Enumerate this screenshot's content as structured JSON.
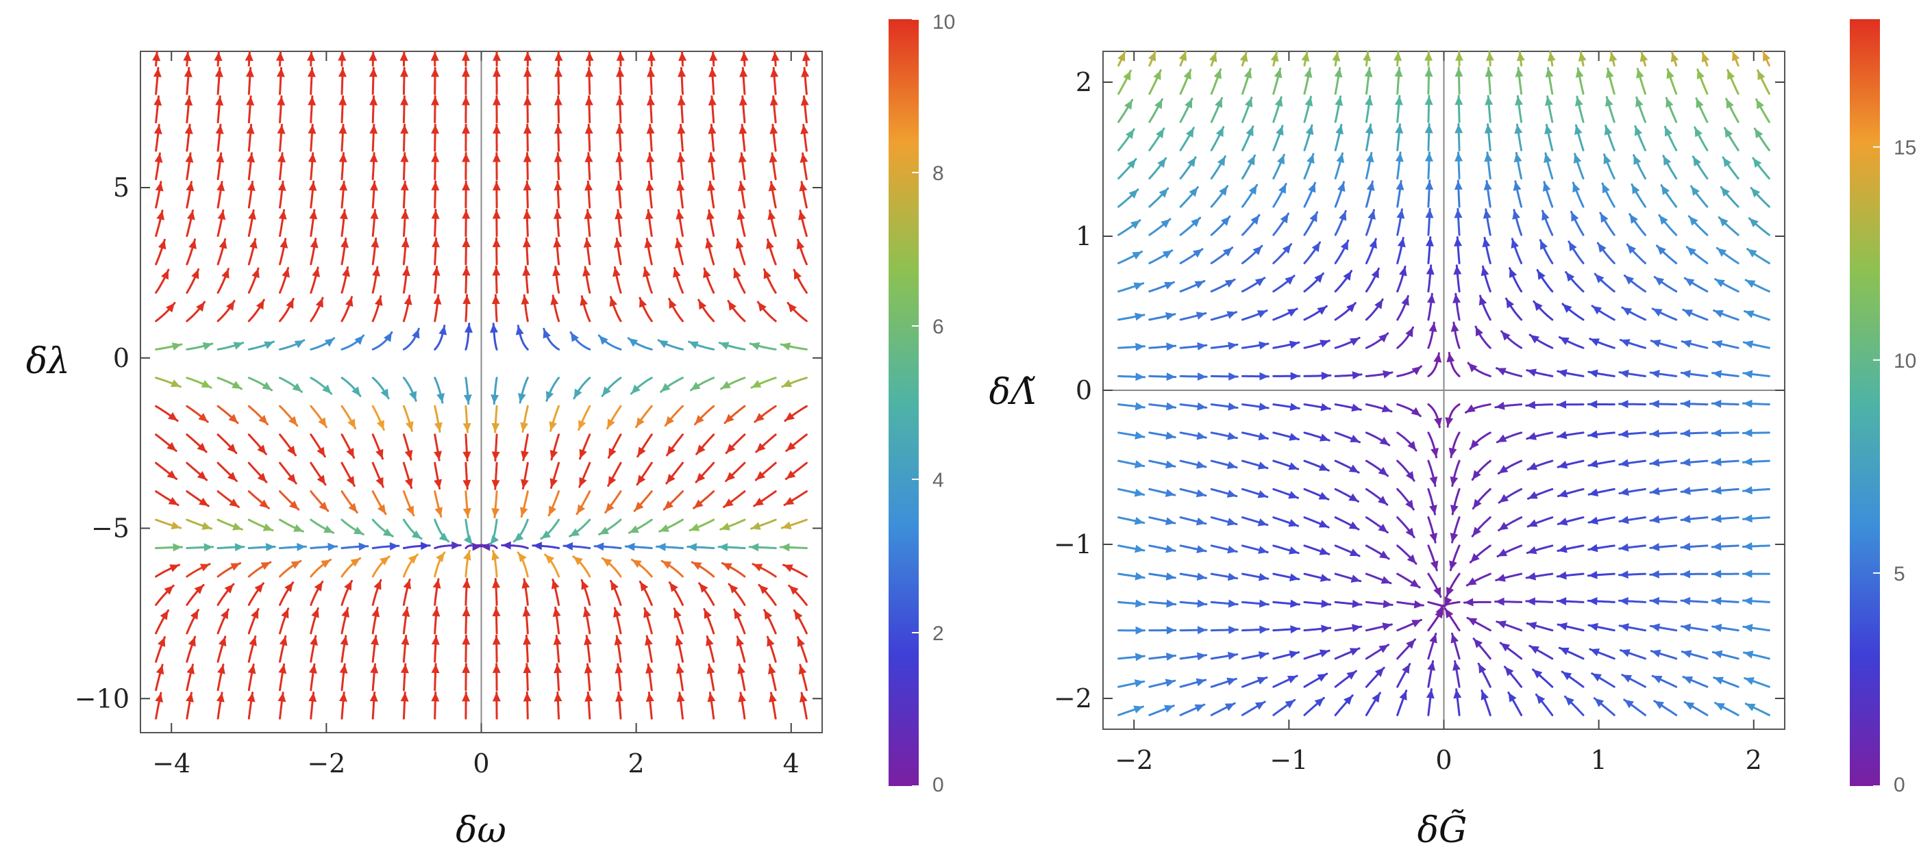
{
  "chart_data": [
    {
      "type": "streamplot",
      "title": "",
      "xlabel": "δω",
      "ylabel": "δλ",
      "xlim": [
        -4.4,
        4.4
      ],
      "ylim": [
        -11,
        9
      ],
      "xticks": [
        -4,
        -2,
        0,
        2,
        4
      ],
      "xtick_labels": [
        "−4",
        "−2",
        "0",
        "2",
        "4"
      ],
      "yticks": [
        5,
        0,
        -5,
        -10
      ],
      "ytick_labels": [
        "5",
        "0",
        "−5",
        "−10"
      ],
      "fixed_points": [
        [
          0,
          0
        ],
        [
          0,
          -5.5
        ]
      ],
      "colorbar": {
        "min": 0,
        "max": 10,
        "ticks": [
          0,
          2,
          4,
          6,
          8,
          10
        ],
        "tick_labels": [
          "0",
          "2",
          "4",
          "6",
          "8",
          "10"
        ]
      },
      "colormap": [
        "#7b1fa2",
        "#3f3fd6",
        "#3d8fd9",
        "#4fb3a5",
        "#8cc152",
        "#f0a030",
        "#e03020"
      ]
    },
    {
      "type": "streamplot",
      "title": "",
      "xlabel": "δG̃",
      "ylabel": "δΛ̃",
      "xlim": [
        -2.2,
        2.2
      ],
      "ylim": [
        -2.2,
        2.2
      ],
      "xticks": [
        -2,
        -1,
        0,
        1,
        2
      ],
      "xtick_labels": [
        "−2",
        "−1",
        "0",
        "1",
        "2"
      ],
      "yticks": [
        2,
        1,
        0,
        -1,
        -2
      ],
      "ytick_labels": [
        "2",
        "1",
        "0",
        "−1",
        "−2"
      ],
      "fixed_points": [
        [
          0,
          0
        ],
        [
          0,
          -1.4
        ]
      ],
      "colorbar": {
        "min": 0,
        "max": 18,
        "ticks": [
          0,
          5,
          10,
          15
        ],
        "tick_labels": [
          "0",
          "5",
          "10",
          "15"
        ]
      },
      "colormap": [
        "#7b1fa2",
        "#3f3fd6",
        "#3d8fd9",
        "#4fb3a5",
        "#8cc152",
        "#f0a030",
        "#e03020"
      ]
    }
  ]
}
